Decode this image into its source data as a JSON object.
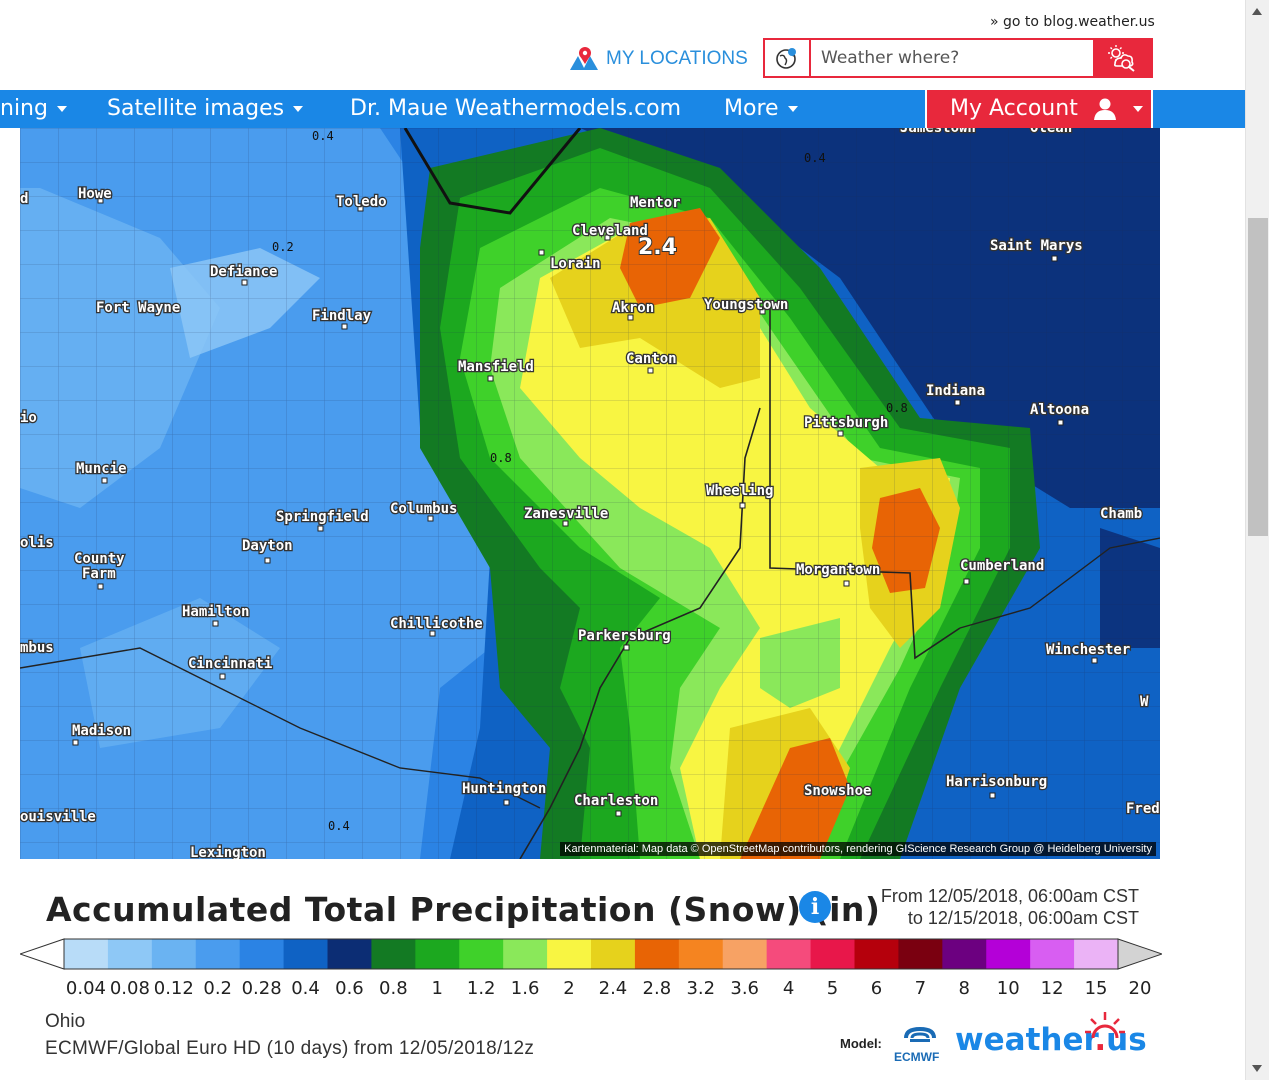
{
  "header": {
    "blog_link": "» go to blog.weather.us",
    "my_locations": "MY LOCATIONS",
    "search_placeholder": "Weather where?"
  },
  "nav": {
    "items": [
      {
        "label": "ning"
      },
      {
        "label": "Satellite images"
      },
      {
        "label": "Dr. Maue Weathermodels.com"
      },
      {
        "label": "More"
      }
    ],
    "account": "My Account"
  },
  "map": {
    "credit": "Kartenmaterial: Map data © OpenStreetMap contributors, rendering GIScience Research Group @ Heidelberg University",
    "cities": [
      "Howe",
      "Toledo",
      "Defiance",
      "Fort Wayne",
      "Findlay",
      "Mansfield",
      "Cleveland",
      "Lorain",
      "Mentor",
      "Akron",
      "Youngstown",
      "Canton",
      "Saint Marys",
      "Indiana",
      "Altoona",
      "Pittsburgh",
      "Muncie",
      "Springfield",
      "Columbus",
      "Zanesville",
      "Dayton",
      "County Farm",
      "olis",
      "Wheeling",
      "Morgantown",
      "Cumberland",
      "Chamb",
      "Hamilton",
      "Chillicothe",
      "Parkersburg",
      "Cincinnati",
      "mbus",
      "Winchester",
      "Madison",
      "Huntington",
      "Charleston",
      "Snowshoe",
      "Harrisonburg",
      "ouisville",
      "Lexington",
      "Olean",
      "Jamestown",
      "Fred",
      "W",
      "d",
      "io"
    ],
    "contour_labels": [
      "0.4",
      "0.2",
      "0.4",
      "0.8",
      "0.8",
      "0.4"
    ],
    "max_label": "2.4"
  },
  "legend": {
    "title": "Accumulated Total Precipitation (Snow) (in)",
    "from": "From 12/05/2018, 06:00am CST",
    "to": "to 12/15/2018, 06:00am CST",
    "scale_values": [
      "0.04",
      "0.08",
      "0.12",
      "0.2",
      "0.28",
      "0.4",
      "0.6",
      "0.8",
      "1",
      "1.2",
      "1.6",
      "2",
      "2.4",
      "2.8",
      "3.2",
      "3.6",
      "4",
      "5",
      "6",
      "7",
      "8",
      "10",
      "12",
      "15",
      "20"
    ],
    "scale_colors": [
      "#b8dcf8",
      "#8ec8f6",
      "#6ab3f2",
      "#4a9cee",
      "#2b83e4",
      "#0f62c4",
      "#0c2d74",
      "#137a23",
      "#1ca81f",
      "#3fd12a",
      "#8ae85a",
      "#f8f542",
      "#e6d21c",
      "#e86405",
      "#f58420",
      "#f7a264",
      "#f54b7c",
      "#e8174a",
      "#b5000c",
      "#7a0010",
      "#6c0080",
      "#b400d8",
      "#d85ef2",
      "#ebb3f6",
      "#f5e3fa",
      "#d3d3d3"
    ],
    "region": "Ohio",
    "model_run": "ECMWF/Global Euro HD (10 days) from 12/05/2018/12z",
    "model_label": "Model:",
    "ecmwf_text": "ECMWF",
    "brand": "weather",
    "brand_suffix": "us"
  }
}
